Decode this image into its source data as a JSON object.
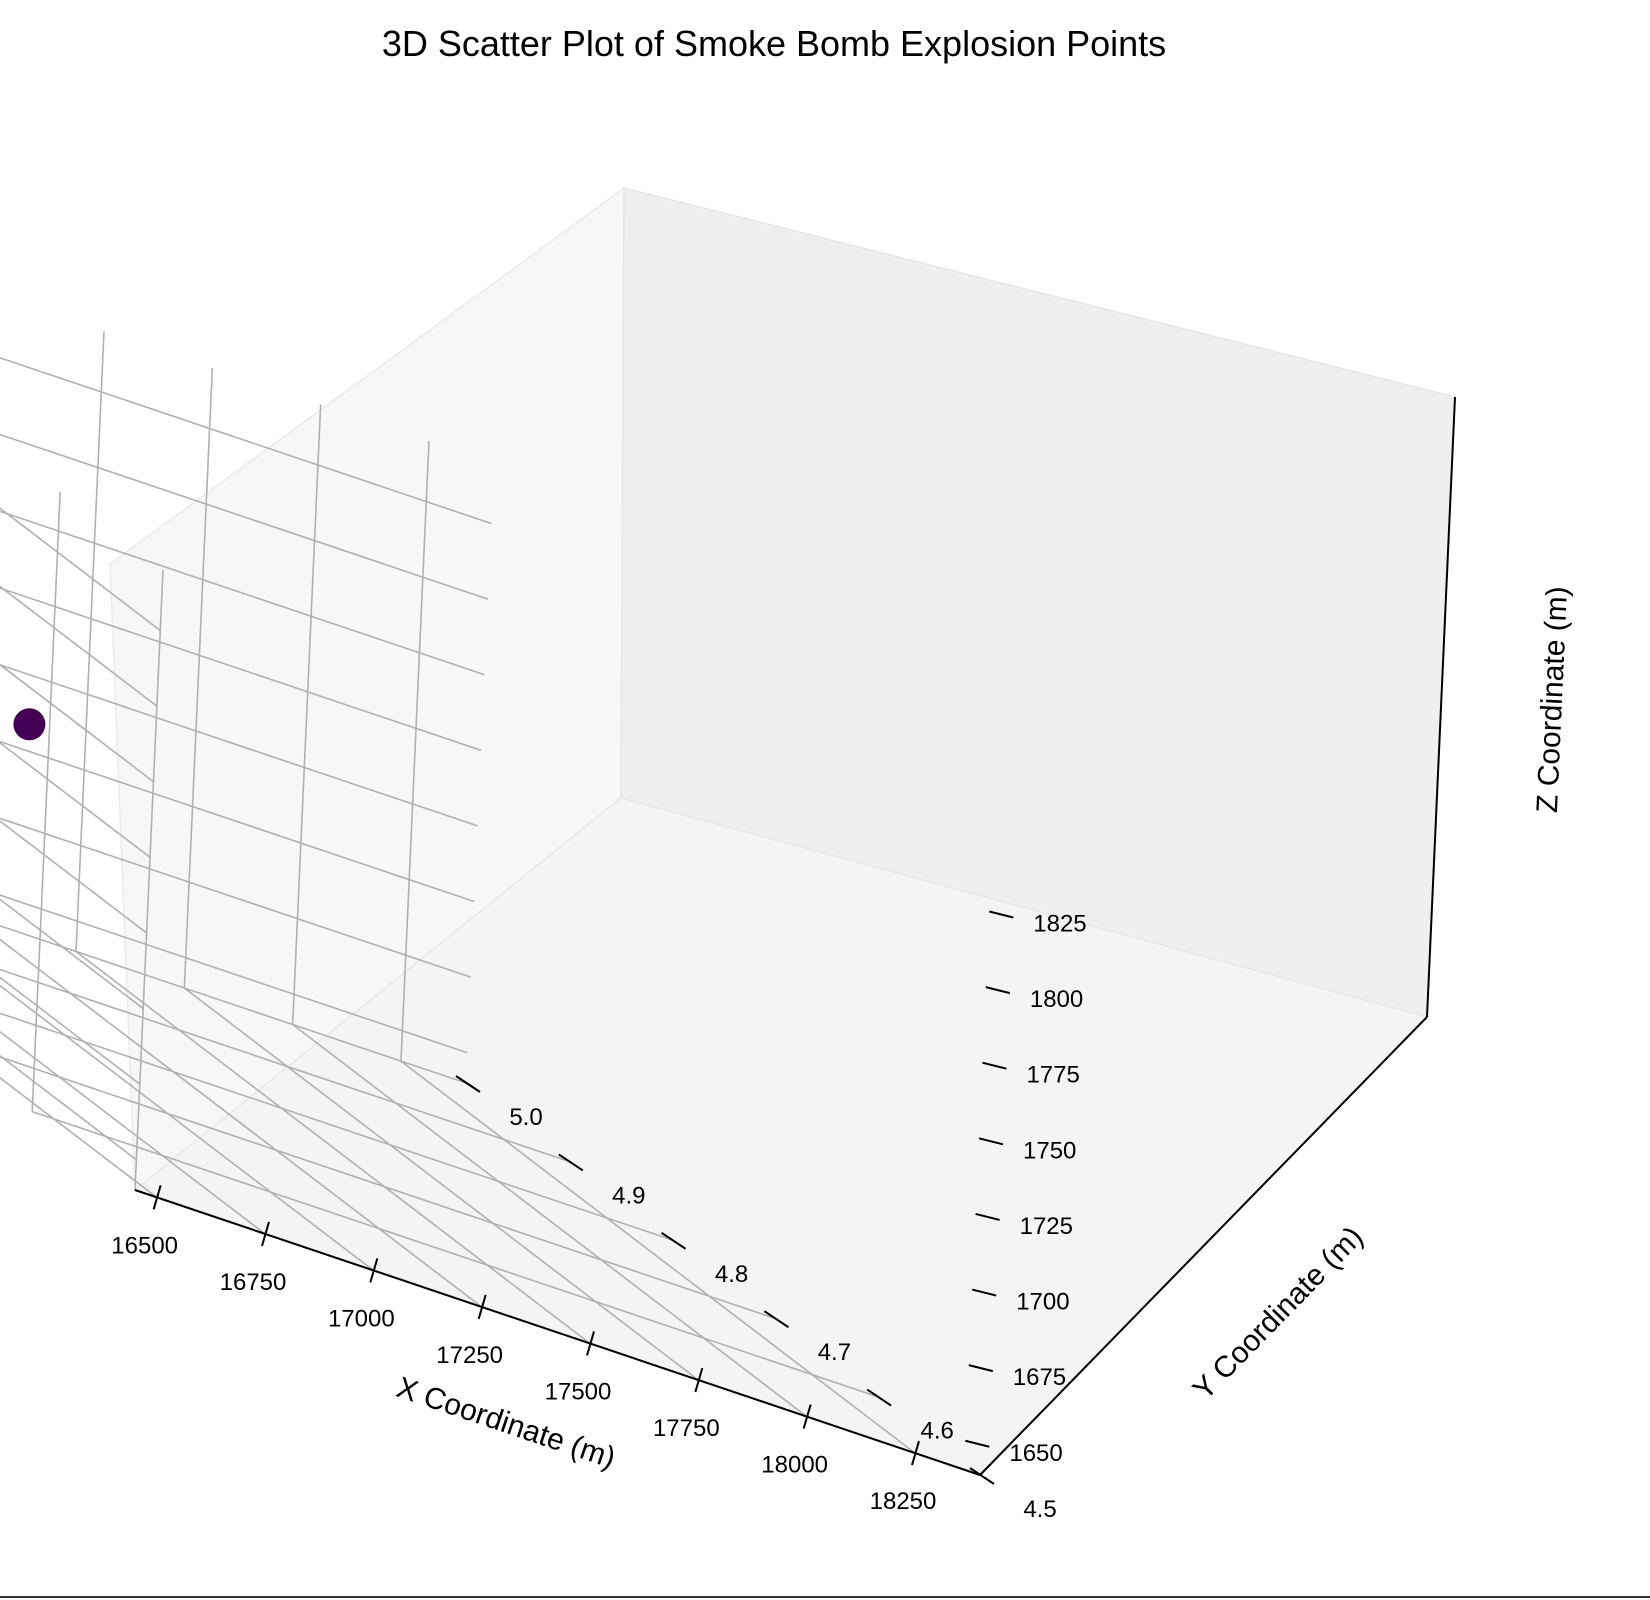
{
  "chart_data": {
    "type": "scatter",
    "title": "3D Scatter Plot of Smoke Bomb Explosion Points",
    "xlabel": "X Coordinate (m)",
    "ylabel": "Y Coordinate (m)",
    "zlabel": "Z Coordinate (m)",
    "xlim": [
      16450,
      18400
    ],
    "ylim": [
      4.5,
      5.0
    ],
    "zlim": [
      1640,
      1845
    ],
    "xticks": [
      "16500",
      "16750",
      "17000",
      "17250",
      "17500",
      "17750",
      "18000",
      "18250"
    ],
    "yticks": [
      "4.5",
      "4.6",
      "4.7",
      "4.8",
      "4.9",
      "5.0"
    ],
    "zticks": [
      "1650",
      "1675",
      "1700",
      "1725",
      "1750",
      "1775",
      "1800",
      "1825"
    ],
    "grid": true,
    "points": [
      {
        "x": 17250,
        "y": 4.95,
        "z": 1716,
        "color": "#440154"
      }
    ]
  }
}
